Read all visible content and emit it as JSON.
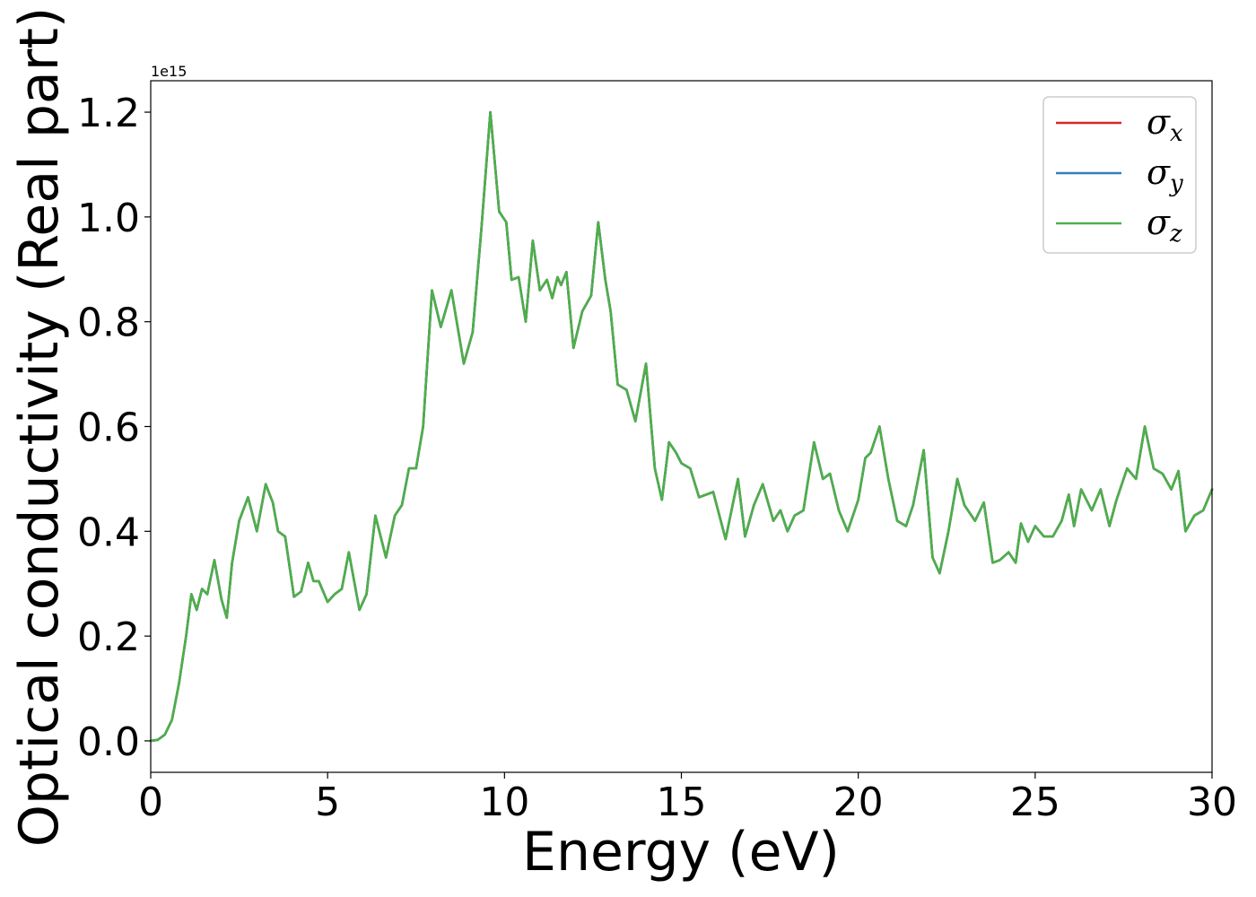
{
  "chart_data": {
    "type": "line",
    "title": "",
    "xlabel": "Energy (eV)",
    "ylabel": "Optical conductivity (Real part)",
    "y_offset_label": "1e15",
    "xlim": [
      0,
      30
    ],
    "ylim": [
      -0.06,
      1.26
    ],
    "x_ticks": [
      "0",
      "5",
      "10",
      "15",
      "20",
      "25",
      "30"
    ],
    "y_ticks": [
      "0.0",
      "0.2",
      "0.4",
      "0.6",
      "0.8",
      "1.0",
      "1.2"
    ],
    "grid": false,
    "legend_position": "top-right",
    "x": [
      0,
      0.2,
      0.4,
      0.6,
      0.8,
      1.0,
      1.15,
      1.3,
      1.45,
      1.6,
      1.8,
      2.0,
      2.15,
      2.3,
      2.5,
      2.75,
      3.0,
      3.25,
      3.45,
      3.6,
      3.8,
      4.05,
      4.25,
      4.45,
      4.6,
      4.75,
      5.0,
      5.2,
      5.4,
      5.6,
      5.9,
      6.1,
      6.35,
      6.65,
      6.9,
      7.1,
      7.3,
      7.5,
      7.7,
      7.95,
      8.2,
      8.5,
      8.85,
      9.1,
      9.35,
      9.6,
      9.85,
      10.05,
      10.2,
      10.4,
      10.6,
      10.8,
      11.0,
      11.2,
      11.35,
      11.5,
      11.6,
      11.75,
      11.95,
      12.2,
      12.45,
      12.65,
      12.85,
      13.0,
      13.2,
      13.45,
      13.7,
      14.0,
      14.25,
      14.45,
      14.65,
      14.85,
      15.0,
      15.25,
      15.5,
      15.9,
      16.25,
      16.6,
      16.8,
      17.05,
      17.3,
      17.6,
      17.8,
      18.0,
      18.2,
      18.45,
      18.75,
      19.0,
      19.2,
      19.45,
      19.7,
      20.0,
      20.2,
      20.35,
      20.6,
      20.85,
      21.1,
      21.35,
      21.55,
      21.85,
      22.1,
      22.3,
      22.55,
      22.8,
      23.0,
      23.3,
      23.55,
      23.8,
      24.0,
      24.25,
      24.45,
      24.6,
      24.8,
      25.0,
      25.25,
      25.5,
      25.75,
      25.95,
      26.1,
      26.3,
      26.6,
      26.85,
      27.1,
      27.3,
      27.6,
      27.85,
      28.0,
      28.1,
      28.35,
      28.6,
      28.85,
      29.05,
      29.25,
      29.5,
      29.75,
      30.0
    ],
    "series": [
      {
        "name": "σx",
        "color": "#d62728",
        "y": [
          0,
          0.002,
          0.012,
          0.04,
          0.11,
          0.2,
          0.28,
          0.25,
          0.29,
          0.28,
          0.345,
          0.27,
          0.235,
          0.34,
          0.42,
          0.465,
          0.4,
          0.49,
          0.455,
          0.4,
          0.39,
          0.275,
          0.285,
          0.34,
          0.305,
          0.305,
          0.265,
          0.28,
          0.29,
          0.36,
          0.25,
          0.28,
          0.43,
          0.35,
          0.43,
          0.45,
          0.52,
          0.52,
          0.6,
          0.86,
          0.79,
          0.86,
          0.72,
          0.78,
          0.98,
          1.2,
          1.01,
          0.99,
          0.88,
          0.885,
          0.8,
          0.955,
          0.86,
          0.88,
          0.845,
          0.885,
          0.87,
          0.895,
          0.75,
          0.82,
          0.85,
          0.99,
          0.88,
          0.82,
          0.68,
          0.67,
          0.61,
          0.72,
          0.52,
          0.46,
          0.57,
          0.55,
          0.53,
          0.52,
          0.465,
          0.475,
          0.385,
          0.5,
          0.39,
          0.45,
          0.49,
          0.42,
          0.44,
          0.4,
          0.43,
          0.44,
          0.57,
          0.5,
          0.51,
          0.44,
          0.4,
          0.46,
          0.54,
          0.55,
          0.6,
          0.5,
          0.42,
          0.41,
          0.45,
          0.555,
          0.35,
          0.32,
          0.4,
          0.5,
          0.45,
          0.42,
          0.455,
          0.34,
          0.345,
          0.36,
          0.34,
          0.415,
          0.38,
          0.41,
          0.39,
          0.39,
          0.42,
          0.47,
          0.41,
          0.48,
          0.44,
          0.48,
          0.41,
          0.46,
          0.52,
          0.5,
          0.56,
          0.6,
          0.52,
          0.51,
          0.48,
          0.515,
          0.4,
          0.43,
          0.44,
          0.48
        ]
      },
      {
        "name": "σy",
        "color": "#377eb8",
        "y": [
          0,
          0.002,
          0.012,
          0.04,
          0.11,
          0.2,
          0.28,
          0.25,
          0.29,
          0.28,
          0.345,
          0.27,
          0.235,
          0.34,
          0.42,
          0.465,
          0.4,
          0.49,
          0.455,
          0.4,
          0.39,
          0.275,
          0.285,
          0.34,
          0.305,
          0.305,
          0.265,
          0.28,
          0.29,
          0.36,
          0.25,
          0.28,
          0.43,
          0.35,
          0.43,
          0.45,
          0.52,
          0.52,
          0.6,
          0.86,
          0.79,
          0.86,
          0.72,
          0.78,
          0.98,
          1.2,
          1.01,
          0.99,
          0.88,
          0.885,
          0.8,
          0.955,
          0.86,
          0.88,
          0.845,
          0.885,
          0.87,
          0.895,
          0.75,
          0.82,
          0.85,
          0.99,
          0.88,
          0.82,
          0.68,
          0.67,
          0.61,
          0.72,
          0.52,
          0.46,
          0.57,
          0.55,
          0.53,
          0.52,
          0.465,
          0.475,
          0.385,
          0.5,
          0.39,
          0.45,
          0.49,
          0.42,
          0.44,
          0.4,
          0.43,
          0.44,
          0.57,
          0.5,
          0.51,
          0.44,
          0.4,
          0.46,
          0.54,
          0.55,
          0.6,
          0.5,
          0.42,
          0.41,
          0.45,
          0.555,
          0.35,
          0.32,
          0.4,
          0.5,
          0.45,
          0.42,
          0.455,
          0.34,
          0.345,
          0.36,
          0.34,
          0.415,
          0.38,
          0.41,
          0.39,
          0.39,
          0.42,
          0.47,
          0.41,
          0.48,
          0.44,
          0.48,
          0.41,
          0.46,
          0.52,
          0.5,
          0.56,
          0.6,
          0.52,
          0.51,
          0.48,
          0.515,
          0.4,
          0.43,
          0.44,
          0.48
        ]
      },
      {
        "name": "σz",
        "color": "#4daf4a",
        "y": [
          0,
          0.002,
          0.012,
          0.04,
          0.11,
          0.2,
          0.28,
          0.25,
          0.29,
          0.28,
          0.345,
          0.27,
          0.235,
          0.34,
          0.42,
          0.465,
          0.4,
          0.49,
          0.455,
          0.4,
          0.39,
          0.275,
          0.285,
          0.34,
          0.305,
          0.305,
          0.265,
          0.28,
          0.29,
          0.36,
          0.25,
          0.28,
          0.43,
          0.35,
          0.43,
          0.45,
          0.52,
          0.52,
          0.6,
          0.86,
          0.79,
          0.86,
          0.72,
          0.78,
          0.98,
          1.2,
          1.01,
          0.99,
          0.88,
          0.885,
          0.8,
          0.955,
          0.86,
          0.88,
          0.845,
          0.885,
          0.87,
          0.895,
          0.75,
          0.82,
          0.85,
          0.99,
          0.88,
          0.82,
          0.68,
          0.67,
          0.61,
          0.72,
          0.52,
          0.46,
          0.57,
          0.55,
          0.53,
          0.52,
          0.465,
          0.475,
          0.385,
          0.5,
          0.39,
          0.45,
          0.49,
          0.42,
          0.44,
          0.4,
          0.43,
          0.44,
          0.57,
          0.5,
          0.51,
          0.44,
          0.4,
          0.46,
          0.54,
          0.55,
          0.6,
          0.5,
          0.42,
          0.41,
          0.45,
          0.555,
          0.35,
          0.32,
          0.4,
          0.5,
          0.45,
          0.42,
          0.455,
          0.34,
          0.345,
          0.36,
          0.34,
          0.415,
          0.38,
          0.41,
          0.39,
          0.39,
          0.42,
          0.47,
          0.41,
          0.48,
          0.44,
          0.48,
          0.41,
          0.46,
          0.52,
          0.5,
          0.56,
          0.6,
          0.52,
          0.51,
          0.48,
          0.515,
          0.4,
          0.43,
          0.44,
          0.48
        ]
      }
    ],
    "legend": [
      {
        "symbol": "σ",
        "subscript": "x",
        "color": "#d62728"
      },
      {
        "symbol": "σ",
        "subscript": "y",
        "color": "#377eb8"
      },
      {
        "symbol": "σ",
        "subscript": "z",
        "color": "#4daf4a"
      }
    ]
  }
}
